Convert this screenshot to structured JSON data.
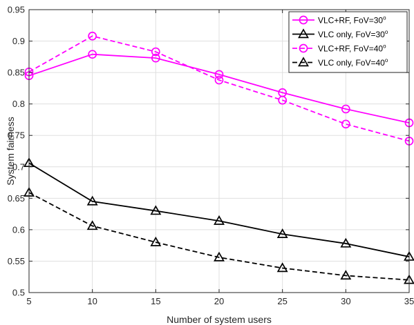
{
  "chart_data": {
    "type": "line",
    "xlabel": "Number of system users",
    "ylabel": "System fairness",
    "xlim": [
      5,
      35
    ],
    "ylim": [
      0.5,
      0.95
    ],
    "x_ticks": [
      "5",
      "10",
      "15",
      "20",
      "25",
      "30",
      "35"
    ],
    "y_ticks": [
      "0.5",
      "0.55",
      "0.6",
      "0.65",
      "0.7",
      "0.75",
      "0.8",
      "0.85",
      "0.9",
      "0.95"
    ],
    "grid": true,
    "legend_position": "top-right",
    "x": [
      5,
      10,
      15,
      20,
      25,
      30,
      35
    ],
    "series": [
      {
        "name": "VLC+RF, FoV=30",
        "name_sup": "o",
        "color": "#ff00ff",
        "dash": "solid",
        "marker": "circle",
        "values": [
          0.845,
          0.879,
          0.873,
          0.847,
          0.818,
          0.792,
          0.77
        ]
      },
      {
        "name": "VLC only, FoV=30",
        "name_sup": "o",
        "color": "#000000",
        "dash": "solid",
        "marker": "triangle",
        "values": [
          0.706,
          0.645,
          0.63,
          0.614,
          0.593,
          0.578,
          0.557
        ]
      },
      {
        "name": "VLC+RF, FoV=40",
        "name_sup": "o",
        "color": "#ff00ff",
        "dash": "dashed",
        "marker": "circle",
        "values": [
          0.851,
          0.908,
          0.883,
          0.838,
          0.806,
          0.768,
          0.741
        ]
      },
      {
        "name": "VLC only, FoV=40",
        "name_sup": "o",
        "color": "#000000",
        "dash": "dashed",
        "marker": "triangle",
        "values": [
          0.659,
          0.606,
          0.58,
          0.556,
          0.539,
          0.527,
          0.52
        ]
      }
    ]
  }
}
